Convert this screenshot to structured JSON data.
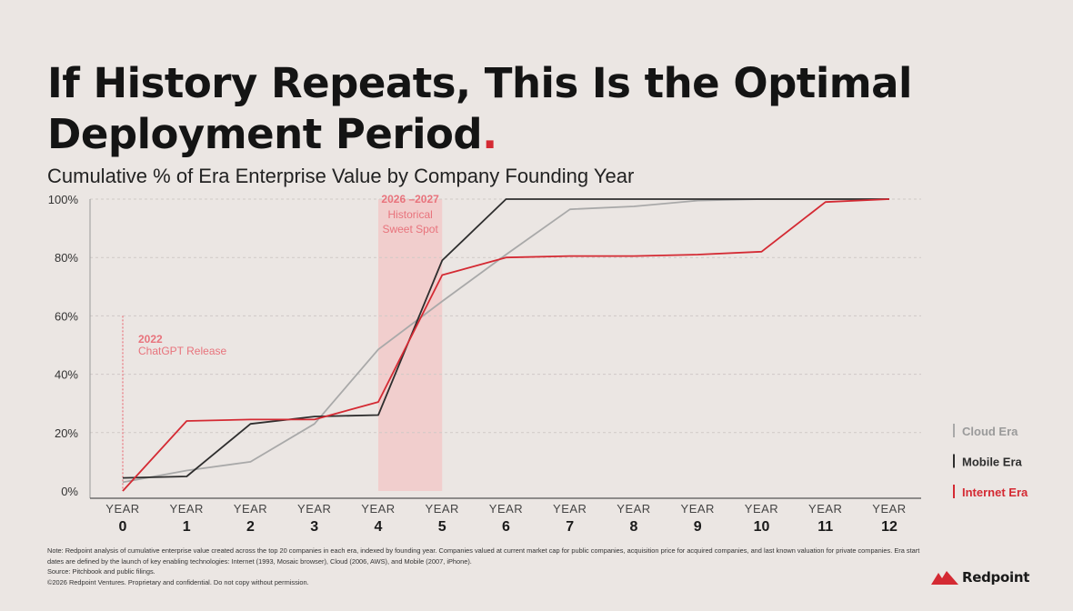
{
  "title": "If History Repeats, This Is the Optimal Deployment Period",
  "title_dot": ".",
  "subtitle": "Cumulative % of Era Enterprise Value by Company Founding Year",
  "colors": {
    "internet": "#d42a33",
    "mobile": "#2e2e2e",
    "cloud": "#a9a9a9",
    "highlight": "#f2c9c9",
    "annotation": "#e8737c",
    "grid": "#cfc9c6"
  },
  "chart_data": {
    "type": "line",
    "x_tick_prefix": "YEAR",
    "x": [
      0,
      1,
      2,
      3,
      4,
      5,
      6,
      7,
      8,
      9,
      10,
      11,
      12
    ],
    "ylim": [
      0,
      100
    ],
    "yticks": [
      0,
      20,
      40,
      60,
      80,
      100
    ],
    "ytick_labels": [
      "0%",
      "20%",
      "40%",
      "60%",
      "80%",
      "100%"
    ],
    "grid": "horizontal dashed",
    "legend_position": "right",
    "series": [
      {
        "name": "Cloud Era",
        "color_key": "cloud",
        "values": [
          3,
          7,
          10,
          23,
          48.5,
          65,
          81,
          96.5,
          97.5,
          99.5,
          100,
          100,
          100
        ]
      },
      {
        "name": "Mobile Era",
        "color_key": "mobile",
        "values": [
          4.5,
          5,
          23,
          25.5,
          26,
          79,
          100,
          100,
          100,
          100,
          100,
          100,
          100
        ]
      },
      {
        "name": "Internet Era",
        "color_key": "internet",
        "values": [
          0,
          24,
          24.5,
          24.5,
          30.5,
          74,
          80,
          80.5,
          80.5,
          81,
          82,
          99,
          100
        ]
      }
    ],
    "legend_order": [
      "Cloud Era",
      "Mobile Era",
      "Internet Era"
    ],
    "highlight_band": {
      "x_start": 4,
      "x_end": 5,
      "title": "2026 –2027",
      "lines": [
        "Historical",
        "Sweet Spot"
      ]
    },
    "annotation": {
      "x": 0,
      "y_top": 60,
      "title": "2022",
      "label": "ChatGPT Release"
    }
  },
  "footnote": {
    "line1": "Note: Redpoint analysis of cumulative enterprise value created across the top 20 companies in each era, indexed by founding year. Companies valued at current market cap for public companies, acquisition price for acquired companies, and last known valuation for private companies. Era start",
    "line2": "dates are defined by the launch of key enabling technologies: Internet (1993, Mosaic browser), Cloud (2006, AWS), and Mobile (2007, iPhone).",
    "line3": "Source: Pitchbook and public filings.",
    "line4": "©2026 Redpoint Ventures. Proprietary and confidential. Do not copy without permission."
  },
  "logo": {
    "text": "Redpoint",
    "icon": "mountain-peaks-icon"
  }
}
